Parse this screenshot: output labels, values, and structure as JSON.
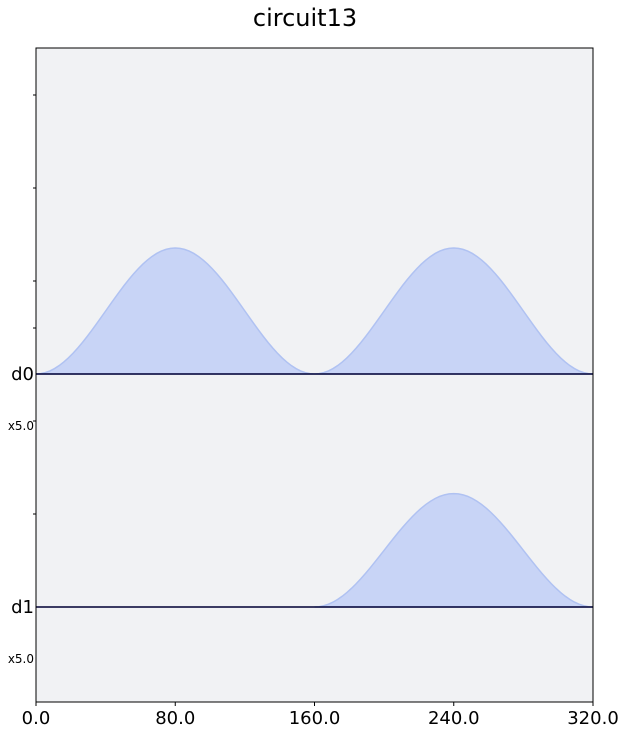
{
  "chart_data": {
    "type": "area",
    "title": "circuit13",
    "xlim": [
      0,
      320
    ],
    "x_ticks": [
      "0.0",
      "80.0",
      "160.0",
      "240.0",
      "320.0"
    ],
    "channels": [
      {
        "name": "d0",
        "scale": "x5.0",
        "pulses": [
          {
            "start": 0,
            "duration": 160,
            "amp": 1.0
          },
          {
            "start": 160,
            "duration": 160,
            "amp": 1.0
          }
        ]
      },
      {
        "name": "d1",
        "scale": "x5.0",
        "pulses": [
          {
            "start": 160,
            "duration": 160,
            "amp": 0.9
          }
        ]
      }
    ],
    "colors": {
      "fill": "#c8d4f6",
      "stroke": "#b0c2f2",
      "baseline": "#000033",
      "background": "#f1f2f4"
    }
  }
}
